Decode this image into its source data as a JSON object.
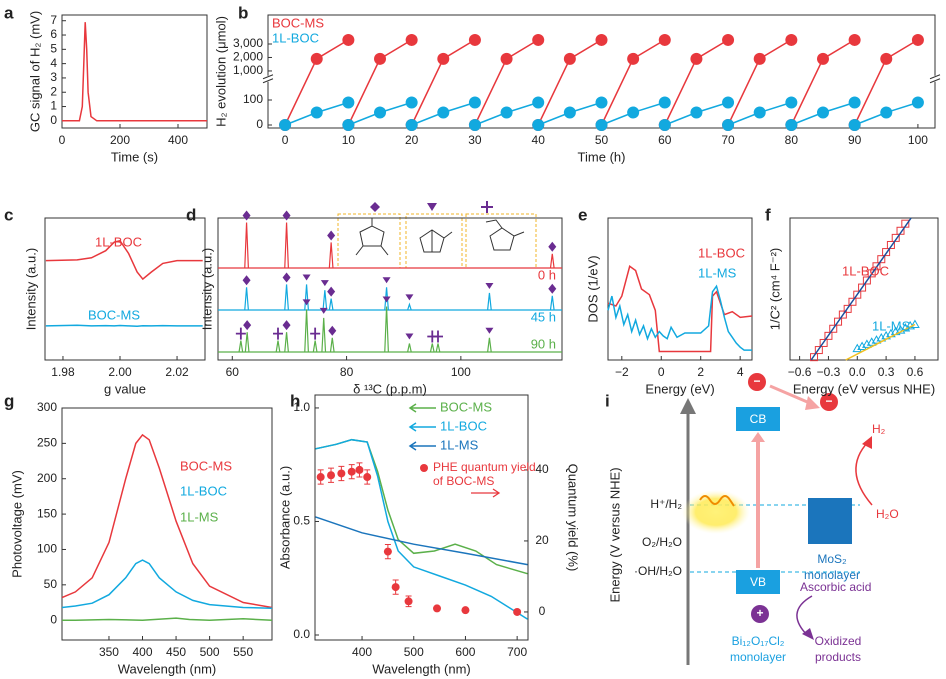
{
  "chart_data": [
    {
      "label": "a",
      "type": "line",
      "xlabel": "Time (s)",
      "ylabel": "GC signal of H₂ (mV)",
      "xlim": [
        0,
        500
      ],
      "ylim": [
        -0.5,
        7.4
      ],
      "xticks": [
        0,
        200,
        400
      ],
      "yticks": [
        0,
        1,
        2,
        3,
        4,
        5,
        6,
        7
      ],
      "series": [
        {
          "color": "#e8383d",
          "x": [
            0,
            60,
            70,
            75,
            80,
            85,
            90,
            100,
            120,
            500
          ],
          "values": [
            0,
            0,
            1,
            4,
            6.9,
            5,
            2,
            0.3,
            0,
            0
          ]
        }
      ]
    },
    {
      "label": "b",
      "type": "line",
      "xlabel": "Time (h)",
      "ylabel": "H₂ evolution (μmol)",
      "xlim": [
        -2.7,
        102.7
      ],
      "ylim": [
        -12,
        5150
      ],
      "ybreak": [
        170,
        700
      ],
      "legend": "upper left",
      "xticks": [
        0,
        10,
        20,
        30,
        40,
        50,
        60,
        70,
        80,
        90,
        100
      ],
      "yticks": [
        0,
        100,
        {
          "value": 1000,
          "label": "1,000"
        },
        {
          "value": 2000,
          "label": "2,000"
        },
        {
          "value": 3000,
          "label": "3,000"
        }
      ],
      "series": [
        {
          "name": "BOC-MS",
          "color": "#e8383d",
          "marker": "circle",
          "x": [
            0,
            5,
            10,
            null,
            10,
            15,
            20,
            null,
            20,
            25,
            30,
            null,
            30,
            35,
            40,
            null,
            40,
            45,
            50,
            null,
            50,
            55,
            60,
            null,
            60,
            65,
            70,
            null,
            70,
            75,
            80,
            null,
            80,
            85,
            90,
            null,
            90,
            95,
            100
          ],
          "values": [
            0,
            1900,
            3300,
            null,
            0,
            1900,
            3300,
            null,
            0,
            1900,
            3300,
            null,
            0,
            1900,
            3300,
            null,
            0,
            1900,
            3300,
            null,
            0,
            1900,
            3300,
            null,
            0,
            1900,
            3300,
            null,
            0,
            1900,
            3300,
            null,
            0,
            1900,
            3300,
            null,
            0,
            1900,
            3300
          ]
        },
        {
          "name": "1L-BOC",
          "color": "#12a9df",
          "marker": "circle",
          "x": [
            0,
            5,
            10,
            null,
            10,
            15,
            20,
            null,
            20,
            25,
            30,
            null,
            30,
            35,
            40,
            null,
            40,
            45,
            50,
            null,
            50,
            55,
            60,
            null,
            60,
            65,
            70,
            null,
            70,
            75,
            80,
            null,
            80,
            85,
            90,
            null,
            90,
            95,
            100
          ],
          "values": [
            0,
            50,
            90,
            null,
            0,
            50,
            90,
            null,
            0,
            50,
            90,
            null,
            0,
            50,
            90,
            null,
            0,
            50,
            90,
            null,
            0,
            50,
            90,
            null,
            0,
            50,
            90,
            null,
            0,
            50,
            90,
            null,
            0,
            50,
            90,
            null,
            0,
            50,
            90
          ]
        }
      ]
    },
    {
      "label": "c",
      "type": "line",
      "xlabel": "g value",
      "ylabel": "Intensity (a.u.)",
      "xlim": [
        1.9737,
        2.0298
      ],
      "ylim": [
        0,
        10
      ],
      "xticks": [
        1.98,
        {
          "value": 2,
          "label": "2.00"
        },
        2.02
      ],
      "series": [
        {
          "name": "1L-BOC",
          "color": "#e8383d",
          "x": [
            1.974,
            1.985,
            1.99,
            1.995,
            1.998,
            2.0,
            2.003,
            2.006,
            2.008,
            2.011,
            2.015,
            2.02,
            2.029
          ],
          "values": [
            7,
            7.05,
            7.2,
            7.7,
            8.3,
            8.4,
            7.5,
            6.2,
            5.7,
            6.2,
            6.8,
            7,
            7
          ]
        },
        {
          "name": "BOC-MS",
          "color": "#12a9df",
          "x": [
            1.974,
            1.985,
            1.99,
            1.995,
            1.998,
            2.0,
            2.003,
            2.006,
            2.008,
            2.011,
            2.015,
            2.02,
            2.029
          ],
          "values": [
            2.4,
            2.45,
            2.4,
            2.42,
            2.4,
            2.43,
            2.4,
            2.38,
            2.41,
            2.4,
            2.42,
            2.4,
            2.4
          ]
        }
      ]
    },
    {
      "label": "d",
      "type": "spectrum",
      "xlabel": "δ ¹³C (p.p.m)",
      "ylabel": "Intensity (a.u.)",
      "xlim": [
        57.5,
        117.7
      ],
      "ylim": [
        0,
        50
      ],
      "xticks": [
        60,
        80,
        100
      ],
      "series": [
        {
          "name": "0 h",
          "color": "#e8383d",
          "x": [
            62.5,
            69.5,
            77.3,
            116
          ],
          "values": [
            16,
            16,
            9,
            5
          ],
          "markers": [
            "diamond",
            "diamond",
            "diamond",
            "diamond"
          ]
        },
        {
          "name": "45 h",
          "color": "#12a9df",
          "x": [
            62.5,
            69.5,
            73,
            76.2,
            77.3,
            87,
            91,
            105,
            116
          ],
          "values": [
            8,
            9,
            9,
            7,
            4,
            8,
            2,
            6,
            5
          ],
          "markers": [
            "diamond",
            "diamond",
            "triangle",
            "triangle",
            "diamond",
            "triangle",
            "triangle",
            "triangle",
            "diamond"
          ]
        },
        {
          "name": "90 h",
          "color": "#5bb04a",
          "x": [
            61.5,
            62.6,
            68,
            69.5,
            73,
            74.5,
            76,
            77.5,
            87,
            91,
            95,
            96,
            105
          ],
          "values": [
            4,
            7,
            4,
            7,
            15,
            4,
            12,
            5,
            16,
            3,
            3,
            3,
            5
          ],
          "markers": [
            "star",
            "diamond",
            "star",
            "diamond",
            "triangle",
            "star",
            "triangle",
            "diamond",
            "triangle",
            "triangle",
            "star",
            "star",
            "triangle"
          ]
        }
      ]
    },
    {
      "label": "e",
      "type": "line",
      "xlabel": "Energy (eV)",
      "ylabel": "DOS (1/eV)",
      "xlim": [
        -2.7,
        4.6
      ],
      "ylim": [
        0,
        10
      ],
      "xticks": [
        {
          "value": -2,
          "label": "−2"
        },
        0,
        2,
        4
      ],
      "series": [
        {
          "name": "1L-BOC",
          "color": "#e8383d",
          "x": [
            -2.7,
            -2.3,
            -2.0,
            -1.6,
            -1.3,
            -1.0,
            -0.6,
            -0.3,
            -0.1,
            2.5,
            2.6,
            2.8,
            3.2,
            3.6,
            4.0,
            4.6
          ],
          "values": [
            4.0,
            3.8,
            4.5,
            6.6,
            6.3,
            5.0,
            4.6,
            3.5,
            0.6,
            0.6,
            4.5,
            4.8,
            3.2,
            3.4,
            3.0,
            3.1
          ]
        },
        {
          "name": "1L-MS",
          "color": "#12a9df",
          "x": [
            -2.7,
            -2.5,
            -2.3,
            -2.1,
            -1.9,
            -1.7,
            -1.5,
            -1.3,
            -1.1,
            -0.9,
            -0.7,
            -0.5,
            -0.3,
            -0.1,
            0.1,
            0.3,
            0.5,
            0.8,
            1.2,
            2.0,
            2.4,
            2.6,
            2.8,
            3.0,
            3.2,
            3.4,
            3.6,
            3.8,
            4.0,
            4.2,
            4.6
          ],
          "values": [
            3.5,
            4.5,
            3.0,
            3.8,
            2.5,
            3.2,
            2.0,
            2.8,
            1.8,
            2.4,
            1.5,
            2.2,
            1.6,
            2.0,
            1.7,
            1.5,
            2.3,
            1.6,
            1.9,
            1.9,
            2.4,
            4.8,
            5.2,
            4.2,
            3.0,
            2.0,
            1.6,
            1.2,
            0.9,
            0.7,
            0.7
          ]
        }
      ]
    },
    {
      "label": "f",
      "type": "scatter",
      "xlabel": "Energy (eV versus NHE)",
      "ylabel": "1/C² (cm⁴ F⁻²)",
      "xlim": [
        -0.7,
        0.84
      ],
      "ylim": [
        0,
        10
      ],
      "xticks": [
        {
          "value": -0.6,
          "label": "−0.6"
        },
        {
          "value": -0.3,
          "label": "−0.3"
        },
        {
          "value": 0,
          "label": "0.0"
        },
        0.3,
        0.6
      ],
      "series": [
        {
          "name": "1L-BOC",
          "color": "#e8383d",
          "marker": "square",
          "line": false,
          "x": [
            -0.45,
            -0.4,
            -0.35,
            -0.3,
            -0.25,
            -0.2,
            -0.15,
            -0.1,
            -0.05,
            0,
            0.05,
            0.1,
            0.15,
            0.2,
            0.25,
            0.3,
            0.35,
            0.4,
            0.45,
            0.5
          ],
          "values": [
            0.2,
            0.7,
            1.2,
            1.7,
            2.2,
            2.7,
            3.2,
            3.6,
            4.1,
            4.6,
            5.1,
            5.6,
            6.1,
            6.6,
            7.1,
            7.6,
            8.1,
            8.6,
            9.1,
            9.6
          ]
        },
        {
          "name": "1L-MS",
          "color": "#12a9df",
          "marker": "triangle",
          "line": false,
          "x": [
            0,
            0.05,
            0.1,
            0.15,
            0.2,
            0.25,
            0.3,
            0.35,
            0.4,
            0.45,
            0.5,
            0.55,
            0.6
          ],
          "values": [
            0.8,
            0.95,
            1.1,
            1.25,
            1.4,
            1.55,
            1.7,
            1.85,
            2.0,
            2.1,
            2.25,
            2.4,
            2.5
          ]
        },
        {
          "color": "#1b4f9c",
          "x": [
            -0.48,
            0.56
          ],
          "values": [
            0,
            10
          ]
        },
        {
          "color": "#f2c01e",
          "x": [
            -0.12,
            0.6
          ],
          "values": [
            0,
            2.5
          ]
        }
      ]
    },
    {
      "label": "g",
      "type": "line",
      "xlabel": "Wavelength (nm)",
      "ylabel": "Photovoltage (mV)",
      "xlim": [
        280,
        593
      ],
      "ylim": [
        -28,
        300
      ],
      "xticks": [
        350,
        400,
        450,
        500,
        550
      ],
      "yticks": [
        0,
        50,
        100,
        150,
        200,
        250,
        300
      ],
      "series": [
        {
          "name": "BOC-MS",
          "color": "#e8383d",
          "x": [
            280,
            300,
            325,
            350,
            375,
            390,
            400,
            410,
            425,
            450,
            475,
            500,
            550,
            593
          ],
          "values": [
            32,
            40,
            60,
            110,
            200,
            250,
            262,
            255,
            215,
            140,
            80,
            48,
            25,
            18
          ]
        },
        {
          "name": "1L-BOC",
          "color": "#12a9df",
          "x": [
            280,
            300,
            325,
            350,
            375,
            390,
            400,
            410,
            425,
            450,
            475,
            500,
            550,
            593
          ],
          "values": [
            18,
            20,
            24,
            36,
            60,
            80,
            85,
            80,
            60,
            40,
            28,
            22,
            18,
            17
          ]
        },
        {
          "name": "1L-MS",
          "color": "#5bb04a",
          "x": [
            280,
            300,
            350,
            400,
            450,
            470,
            500,
            550,
            593
          ],
          "values": [
            0,
            0,
            1,
            0,
            3,
            1,
            0,
            2,
            0
          ]
        }
      ]
    },
    {
      "label": "h",
      "type": "line",
      "xlabel": "Wavelength (nm)",
      "ylabel": "Absorbance (a.u.)",
      "y2label": "Quantum yield (%)",
      "xlim": [
        309,
        721
      ],
      "ylim": [
        -0.022,
        1.057
      ],
      "y2lim": [
        -7.9,
        61.1
      ],
      "xticks": [
        400,
        500,
        600,
        700
      ],
      "yticks": [
        {
          "value": 0,
          "label": "0.0"
        },
        0.5,
        {
          "value": 1,
          "label": "1.0"
        }
      ],
      "y2ticks": [
        0,
        20,
        40
      ],
      "series": [
        {
          "name": "BOC-MS",
          "color": "#5bb04a",
          "x": [
            310,
            350,
            380,
            410,
            430,
            450,
            470,
            500,
            540,
            580,
            620,
            660,
            720
          ],
          "values": [
            0.82,
            0.84,
            0.86,
            0.85,
            0.72,
            0.55,
            0.42,
            0.36,
            0.37,
            0.4,
            0.37,
            0.31,
            0.27
          ]
        },
        {
          "name": "1L-BOC",
          "color": "#12a9df",
          "x": [
            310,
            350,
            380,
            410,
            430,
            450,
            470,
            500,
            550,
            600,
            650,
            720
          ],
          "values": [
            0.82,
            0.84,
            0.86,
            0.85,
            0.7,
            0.5,
            0.37,
            0.3,
            0.26,
            0.22,
            0.17,
            0.07
          ]
        },
        {
          "name": "1L-MS",
          "color": "#1b75bc",
          "x": [
            310,
            400,
            500,
            600,
            720
          ],
          "values": [
            0.52,
            0.45,
            0.4,
            0.36,
            0.31
          ]
        },
        {
          "name": "PHE quantum yield of BOC-MS",
          "color": "#e8383d",
          "axis": "y2",
          "marker": "circle",
          "line": false,
          "x": [
            320,
            340,
            360,
            380,
            395,
            410,
            450,
            465,
            490,
            545,
            600,
            700
          ],
          "values": [
            38,
            38.5,
            39,
            39.5,
            40,
            38,
            17,
            7,
            3,
            1,
            0.5,
            0
          ],
          "errors": [
            2,
            2,
            2,
            2,
            2,
            2,
            2,
            2,
            1.5,
            0,
            0,
            0
          ]
        }
      ]
    }
  ],
  "diagram": {
    "label": "i",
    "energy_axis": "Energy (V versus NHE)",
    "levels": [
      "H⁺/H₂",
      "O₂/H₂O",
      "·OH/H₂O"
    ],
    "cb": "CB",
    "vb": "VB",
    "electron": "−",
    "hole": "+",
    "mos2": [
      "MoS₂",
      "monolayer"
    ],
    "h2": "H₂",
    "h2o": "H₂O",
    "donor": "Ascorbic acid",
    "product": [
      "Oxidized",
      "products"
    ],
    "host": [
      "Bi₁₂O₁₇Cl₂",
      "monolayer"
    ]
  }
}
